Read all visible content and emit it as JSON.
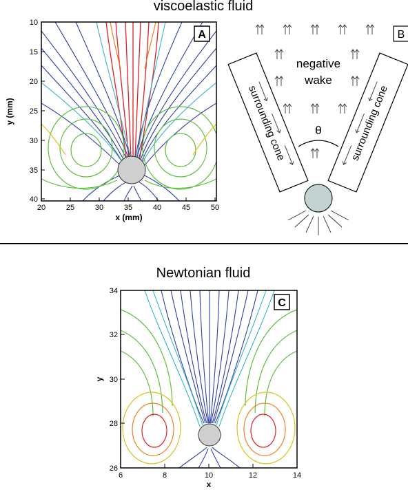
{
  "figure": {
    "title_top": "viscoelastic fluid",
    "title_bottom": "Newtonian fluid"
  },
  "panel_a": {
    "label": "A",
    "xlabel": "x (mm)",
    "ylabel": "y (mm)",
    "xticks": [
      "20",
      "25",
      "30",
      "35",
      "40",
      "45",
      "50"
    ],
    "yticks": [
      "10",
      "15",
      "20",
      "25",
      "30",
      "35",
      "40"
    ]
  },
  "panel_b": {
    "label": "B",
    "wake_label_1": "negative",
    "wake_label_2": "wake",
    "cone_left": "surrounding cone",
    "cone_right": "surrounding cone",
    "angle": "θ"
  },
  "panel_c": {
    "label": "C",
    "xlabel": "x",
    "ylabel": "y",
    "xticks": [
      "6",
      "8",
      "10",
      "12",
      "14"
    ],
    "yticks": [
      "26",
      "28",
      "30",
      "32",
      "34"
    ]
  },
  "colors": {
    "slow": "#2b3fa8",
    "mid": "#39b5c7",
    "green": "#5cbf3a",
    "yellow": "#d9c21a",
    "orange": "#f08020",
    "red": "#e02020",
    "sphere": "#cfcfcf",
    "sphere_b": "#c2d3d3"
  }
}
